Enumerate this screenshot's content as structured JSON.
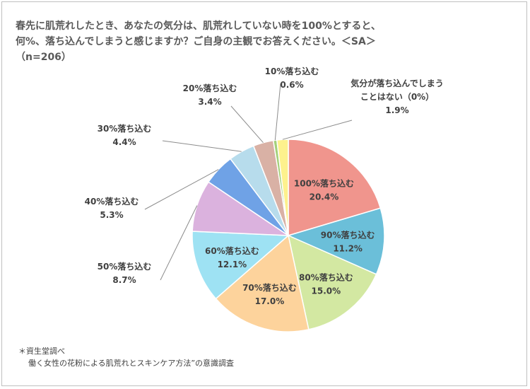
{
  "title": {
    "line1": "春先に肌荒れしたとき、あなたの気分は、肌荒れしていない時を100%とすると、",
    "line2": "何%、落ち込んでしまうと感じますか？ご自身の主観でお答えください。＜SA＞",
    "line3": "（n=206）"
  },
  "source": {
    "line1": "＊資生堂調べ",
    "line2": "働く女性の花粉による肌荒れとスキンケア方法”の意識調査"
  },
  "chart_data": {
    "type": "pie",
    "slices": [
      {
        "label": "100%落ち込む",
        "value": 20.4,
        "value_label": "20.4%",
        "color": "#f0958d",
        "label_inside": true
      },
      {
        "label": "90%落ち込む",
        "value": 11.2,
        "value_label": "11.2%",
        "color": "#6bbfd9",
        "label_inside": true
      },
      {
        "label": "80%落ち込む",
        "value": 15.0,
        "value_label": "15.0%",
        "color": "#d3e8a2",
        "label_inside": true
      },
      {
        "label": "70%落ち込む",
        "value": 17.0,
        "value_label": "17.0%",
        "color": "#fdd39c",
        "label_inside": true
      },
      {
        "label": "60%落ち込む",
        "value": 12.1,
        "value_label": "12.1%",
        "color": "#9ee2f3",
        "label_inside": true
      },
      {
        "label": "50%落ち込む",
        "value": 8.7,
        "value_label": "8.7%",
        "color": "#dbb2de",
        "label_inside": false
      },
      {
        "label": "40%落ち込む",
        "value": 5.3,
        "value_label": "5.3%",
        "color": "#6fa2e6",
        "label_inside": false
      },
      {
        "label": "30%落ち込む",
        "value": 4.4,
        "value_label": "4.4%",
        "color": "#b7dcec",
        "label_inside": false
      },
      {
        "label": "20%落ち込む",
        "value": 3.4,
        "value_label": "3.4%",
        "color": "#d9b1a5",
        "label_inside": false
      },
      {
        "label": "10%落ち込む",
        "value": 0.6,
        "value_label": "0.6%",
        "color": "#a4d07a",
        "label_inside": false
      },
      {
        "label": "気分が落ち込んでしまう\nことはない（0%）",
        "value": 1.9,
        "value_label": "1.9%",
        "color": "#fdf18d",
        "label_inside": false
      }
    ]
  }
}
